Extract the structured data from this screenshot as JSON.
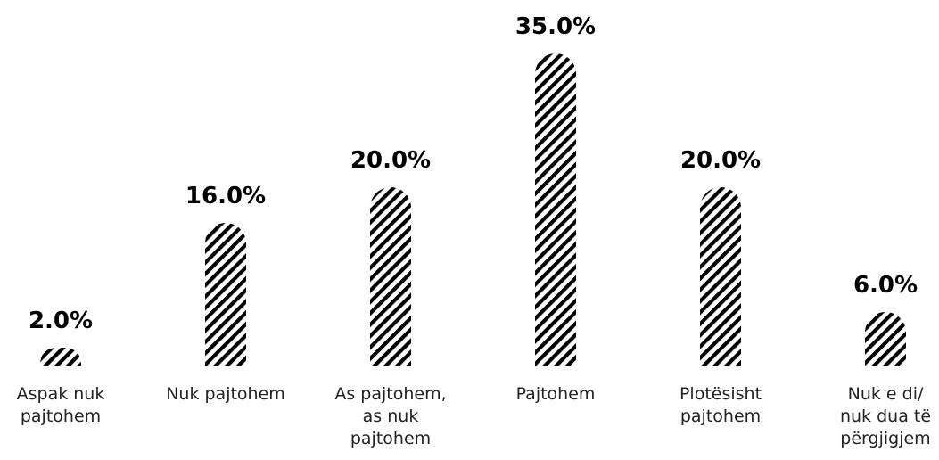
{
  "chart_data": {
    "type": "bar",
    "categories": [
      [
        "Aspak nuk",
        "pajtohem"
      ],
      [
        "Nuk pajtohem"
      ],
      [
        "As pajtohem,",
        "as nuk",
        "pajtohem"
      ],
      [
        "Pajtohem"
      ],
      [
        "Plotësisht",
        "pajtohem"
      ],
      [
        "Nuk e di/",
        "nuk dua të",
        "përgjigjem"
      ]
    ],
    "values": [
      2.0,
      16.0,
      20.0,
      35.0,
      20.0,
      6.0
    ],
    "value_labels": [
      "2.0%",
      "16.0%",
      "20.0%",
      "35.0%",
      "20.0%",
      "6.0%"
    ],
    "ylim": [
      0,
      35
    ],
    "grid": false,
    "legend": "none",
    "bar_fill": "diagonal-hatch",
    "bar_color": "#000000"
  }
}
